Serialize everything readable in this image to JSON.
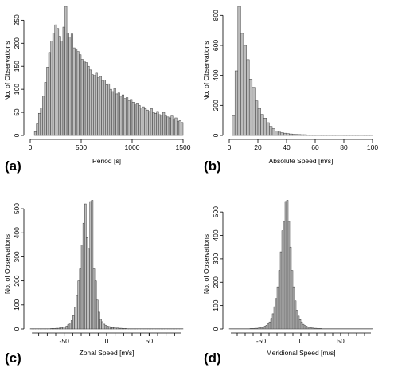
{
  "chart_data": [
    {
      "type": "bar",
      "panel": "(a)",
      "xlabel": "Period [s]",
      "ylabel": "No. of Observations",
      "xlim": [
        0,
        1500
      ],
      "ylim": [
        0,
        280
      ],
      "xticks": [
        0,
        500,
        1000,
        1500
      ],
      "yticks": [
        0,
        50,
        100,
        150,
        200,
        250
      ],
      "bin_width": 20,
      "bin_start": 40,
      "values": [
        8,
        25,
        48,
        60,
        85,
        115,
        148,
        180,
        205,
        222,
        240,
        232,
        215,
        205,
        235,
        280,
        222,
        213,
        220,
        190,
        188,
        182,
        175,
        165,
        162,
        158,
        150,
        142,
        132,
        130,
        135,
        125,
        128,
        118,
        120,
        110,
        112,
        100,
        95,
        102,
        90,
        92,
        85,
        88,
        80,
        82,
        75,
        78,
        72,
        68,
        70,
        65,
        60,
        62,
        58,
        55,
        52,
        58,
        50,
        48,
        52,
        45,
        44,
        50,
        42,
        40,
        38,
        42,
        35,
        38,
        30,
        32,
        28,
        25,
        30,
        22,
        20,
        25,
        18,
        20,
        15,
        18,
        16,
        14,
        12,
        10,
        12,
        10,
        8,
        10,
        8,
        6,
        8,
        5
      ]
    },
    {
      "type": "bar",
      "panel": "(b)",
      "xlabel": "Absolute Speed [m/s]",
      "ylabel": "No. of Observations",
      "xlim": [
        0,
        100
      ],
      "ylim": [
        0,
        860
      ],
      "xticks": [
        0,
        20,
        40,
        60,
        80,
        100
      ],
      "yticks": [
        0,
        200,
        400,
        600,
        800
      ],
      "bin_width": 2,
      "bin_start": 2,
      "values": [
        130,
        430,
        860,
        680,
        600,
        505,
        375,
        320,
        230,
        180,
        140,
        115,
        85,
        60,
        45,
        30,
        22,
        18,
        15,
        12,
        10,
        8,
        7,
        6,
        5,
        5,
        4,
        4,
        3,
        3,
        3,
        2,
        2,
        2,
        2,
        2,
        2,
        1,
        1,
        1,
        1,
        1,
        1,
        1,
        1,
        1,
        1,
        1,
        1
      ]
    },
    {
      "type": "bar",
      "panel": "(c)",
      "xlabel": "Zonal Speed [m/s]",
      "ylabel": "No. of Observations",
      "xlim": [
        -90,
        90
      ],
      "ylim": [
        0,
        540
      ],
      "xticks": [
        -50,
        0,
        50
      ],
      "yticks": [
        0,
        100,
        200,
        300,
        400,
        500
      ],
      "bin_width": 2,
      "bin_start": -90,
      "values": [
        1,
        1,
        1,
        1,
        1,
        1,
        1,
        1,
        1,
        1,
        1,
        1,
        2,
        2,
        2,
        3,
        3,
        4,
        5,
        7,
        9,
        12,
        18,
        25,
        35,
        55,
        90,
        140,
        200,
        250,
        350,
        440,
        520,
        380,
        335,
        530,
        535,
        250,
        200,
        120,
        70,
        40,
        30,
        20,
        15,
        12,
        10,
        8,
        6,
        5,
        4,
        4,
        3,
        3,
        2,
        2,
        2,
        1,
        1,
        1,
        1,
        1,
        1,
        1,
        1,
        1,
        1,
        1,
        1,
        1,
        1,
        1,
        1,
        1,
        1,
        1,
        1,
        1,
        1,
        1,
        1,
        1,
        1,
        1,
        1,
        1,
        1,
        1,
        1,
        1
      ]
    },
    {
      "type": "bar",
      "panel": "(d)",
      "xlabel": "Meridional Speed [m/s]",
      "ylabel": "No. of Observations",
      "xlim": [
        -90,
        90
      ],
      "ylim": [
        0,
        555
      ],
      "xticks": [
        -50,
        0,
        50
      ],
      "yticks": [
        0,
        100,
        200,
        300,
        400,
        500
      ],
      "bin_width": 2,
      "bin_start": -90,
      "values": [
        1,
        1,
        1,
        1,
        1,
        1,
        1,
        1,
        1,
        1,
        1,
        1,
        1,
        2,
        2,
        2,
        3,
        3,
        4,
        5,
        7,
        9,
        12,
        16,
        22,
        30,
        45,
        65,
        95,
        130,
        180,
        250,
        330,
        420,
        460,
        545,
        550,
        460,
        350,
        250,
        180,
        120,
        80,
        55,
        40,
        30,
        20,
        15,
        12,
        9,
        7,
        5,
        4,
        3,
        3,
        2,
        2,
        2,
        1,
        1,
        1,
        1,
        1,
        1,
        1,
        1,
        1,
        1,
        1,
        1,
        1,
        1,
        1,
        1,
        1,
        1,
        1,
        1,
        1,
        1,
        1,
        1,
        1,
        1,
        1,
        1,
        1,
        1,
        1,
        1
      ]
    }
  ]
}
